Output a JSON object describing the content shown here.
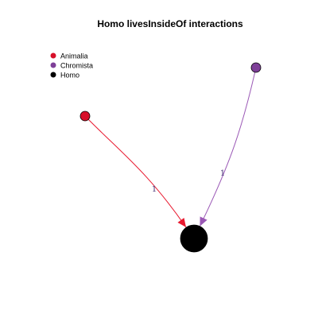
{
  "title": "Homo livesInsideOf interactions",
  "legend": [
    {
      "label": "Animalia",
      "color": "#d7102a"
    },
    {
      "label": "Chromista",
      "color": "#7e3f98"
    },
    {
      "label": "Homo",
      "color": "#000000"
    }
  ],
  "nodes": [
    {
      "id": "animalia",
      "group": "Animalia",
      "color": "#d7102a"
    },
    {
      "id": "chromista",
      "group": "Chromista",
      "color": "#7e3f98"
    },
    {
      "id": "homo",
      "group": "Homo",
      "color": "#000000"
    }
  ],
  "edges": [
    {
      "from": "animalia",
      "to": "homo",
      "label": "1",
      "color": "#e8192f",
      "label_color": "#4b3a7a"
    },
    {
      "from": "chromista",
      "to": "homo",
      "label": "1",
      "color": "#9b59b6",
      "label_color": "#4b3a7a"
    }
  ]
}
